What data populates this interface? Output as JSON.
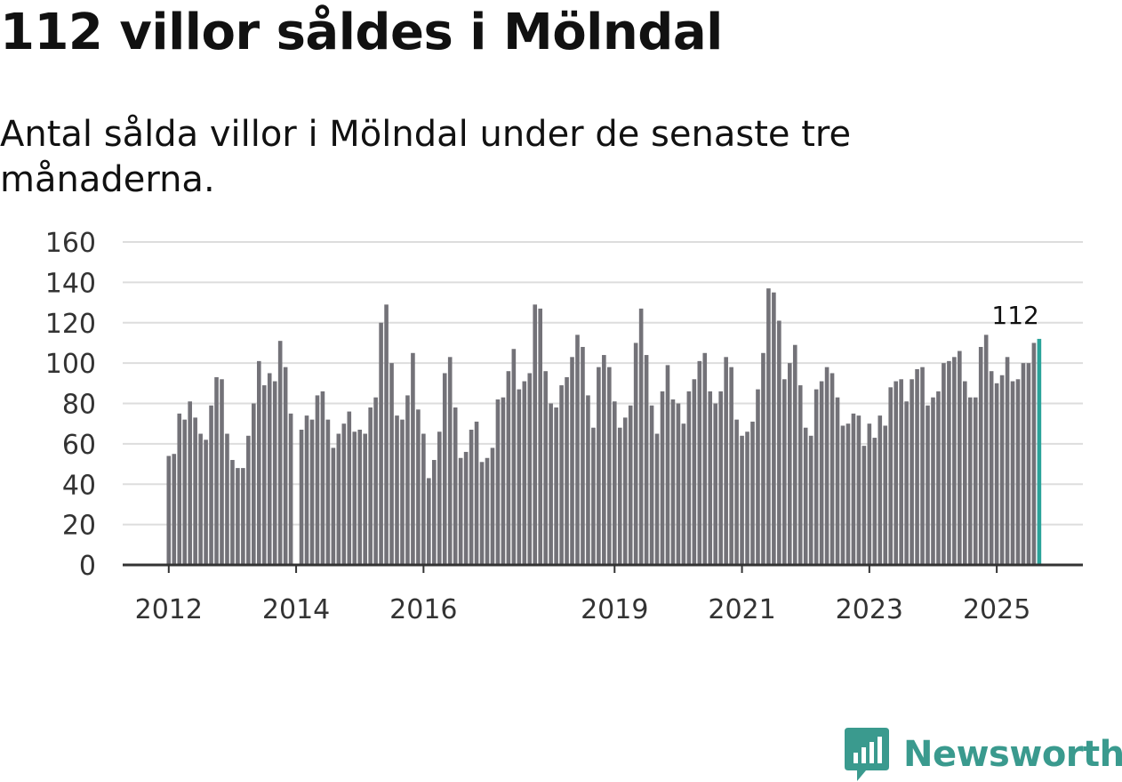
{
  "title": "112 villor såldes i Mölndal",
  "subtitle": "Antal sålda villor i Mölndal under de senaste tre månaderna.",
  "brand": "Newsworthy",
  "colors": {
    "bar": "#737278",
    "highlight": "#2aa39a",
    "grid": "#dddddd",
    "axis": "#333333",
    "brand": "#3a9a8e"
  },
  "chart_data": {
    "type": "bar",
    "ylim": [
      0,
      160
    ],
    "yticks": [
      "0",
      "20",
      "40",
      "60",
      "80",
      "100",
      "120",
      "140",
      "160"
    ],
    "xticks": [
      {
        "label": "2012",
        "index": 0
      },
      {
        "label": "2014",
        "index": 24
      },
      {
        "label": "2016",
        "index": 48
      },
      {
        "label": "2019",
        "index": 84
      },
      {
        "label": "2021",
        "index": 108
      },
      {
        "label": "2023",
        "index": 132
      },
      {
        "label": "2025",
        "index": 156
      }
    ],
    "highlight_label": "112",
    "values": [
      54,
      55,
      75,
      72,
      81,
      73,
      65,
      62,
      79,
      93,
      92,
      65,
      52,
      48,
      48,
      64,
      80,
      101,
      89,
      95,
      91,
      111,
      98,
      75,
      0,
      67,
      74,
      72,
      84,
      86,
      72,
      58,
      65,
      70,
      76,
      66,
      67,
      65,
      78,
      83,
      120,
      129,
      100,
      74,
      72,
      84,
      105,
      77,
      65,
      43,
      52,
      66,
      95,
      103,
      78,
      53,
      56,
      67,
      71,
      51,
      53,
      58,
      82,
      83,
      96,
      107,
      87,
      91,
      95,
      129,
      127,
      96,
      80,
      78,
      89,
      93,
      103,
      114,
      108,
      84,
      68,
      98,
      104,
      98,
      81,
      68,
      73,
      79,
      110,
      127,
      104,
      79,
      65,
      86,
      99,
      82,
      80,
      70,
      86,
      92,
      101,
      105,
      86,
      80,
      86,
      103,
      98,
      72,
      64,
      66,
      71,
      87,
      105,
      137,
      135,
      121,
      92,
      100,
      109,
      89,
      68,
      64,
      87,
      91,
      98,
      95,
      83,
      69,
      70,
      75,
      74,
      59,
      70,
      63,
      74,
      69,
      88,
      91,
      92,
      81,
      92,
      97,
      98,
      79,
      83,
      86,
      100,
      101,
      103,
      106,
      91,
      83,
      83,
      108,
      114,
      96,
      90,
      94,
      103,
      91,
      92,
      100,
      100,
      110,
      112
    ]
  }
}
